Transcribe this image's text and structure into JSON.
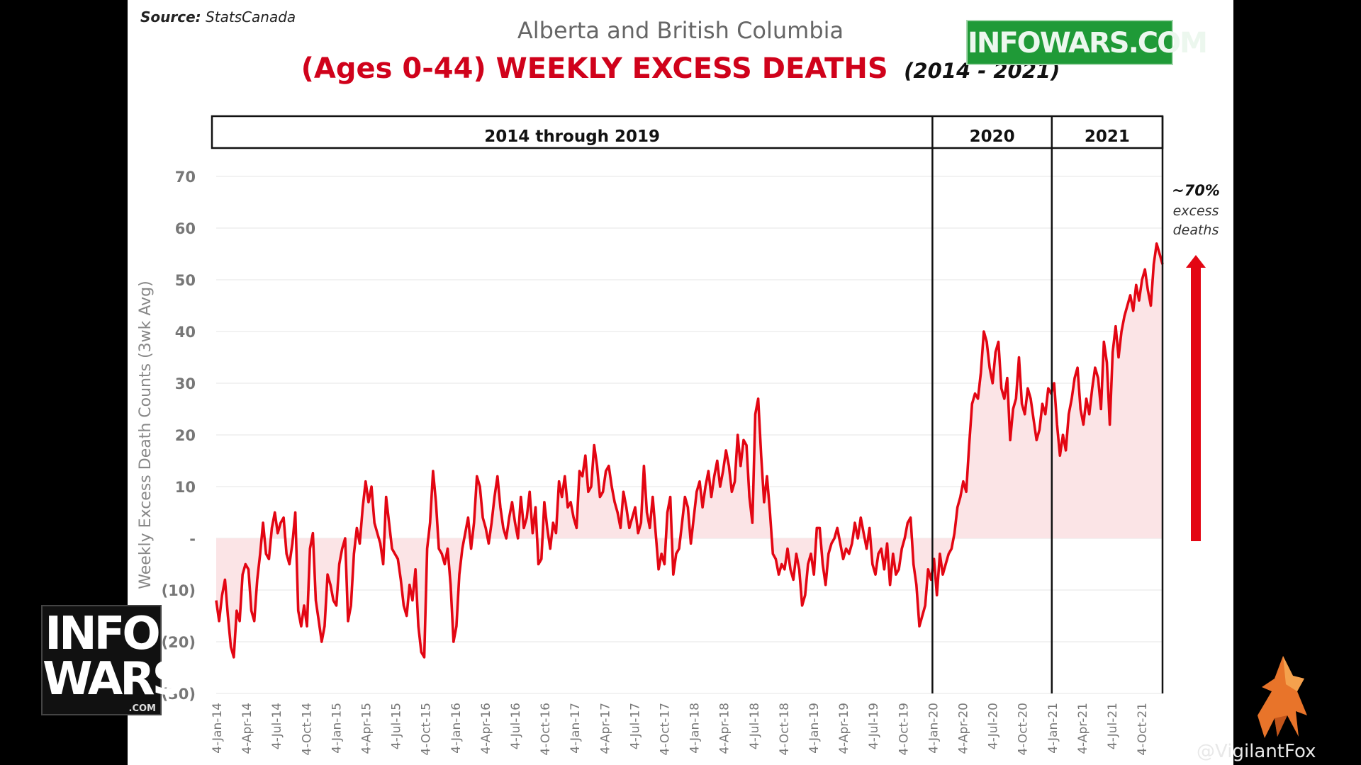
{
  "source": {
    "label": "Source:",
    "value": "StatsCanada"
  },
  "title_top": "Alberta and British Columbia",
  "title_main": "(Ages 0-44) WEEKLY EXCESS DEATHS",
  "title_years": "(2014 - 2021)",
  "logo_corner": "INFOWARS.COM",
  "logo_left": {
    "line1": "INFO",
    "line2": "WARS",
    "com": ".COM"
  },
  "watermark": "@VigilantFox",
  "colors": {
    "line": "#e30613",
    "title": "#d0021b",
    "logo_green": "#1f9a37"
  },
  "icons": {
    "fox": "fox-icon",
    "arrow": "up-arrow-icon"
  },
  "chart_data": {
    "type": "line",
    "ylabel": "Weekly Excess Death Counts (3wk Avg)",
    "xlabel": "",
    "ylim": [
      -30,
      70
    ],
    "y_ticks": [
      70,
      60,
      50,
      40,
      30,
      20,
      10,
      0,
      -10,
      -20,
      -30
    ],
    "y_tick_labels": [
      "70",
      "60",
      "50",
      "40",
      "30",
      "20",
      "10",
      "-",
      "(10)",
      "(20)",
      "(30)"
    ],
    "x_tick_labels": [
      "4-Jan-14",
      "4-Apr-14",
      "4-Jul-14",
      "4-Oct-14",
      "4-Jan-15",
      "4-Apr-15",
      "4-Jul-15",
      "4-Oct-15",
      "4-Jan-16",
      "4-Apr-16",
      "4-Jul-16",
      "4-Oct-16",
      "4-Jan-17",
      "4-Apr-17",
      "4-Jul-17",
      "4-Oct-17",
      "4-Jan-18",
      "4-Apr-18",
      "4-Jul-18",
      "4-Oct-18",
      "4-Jan-19",
      "4-Apr-19",
      "4-Jul-19",
      "4-Oct-19",
      "4-Jan-20",
      "4-Apr-20",
      "4-Jul-20",
      "4-Oct-20",
      "4-Jan-21",
      "4-Apr-21",
      "4-Jul-21",
      "4-Oct-21"
    ],
    "periods": [
      {
        "label": "2014 through 2019",
        "start_index": 0,
        "end_index": 24
      },
      {
        "label": "2020",
        "start_index": 24,
        "end_index": 28
      },
      {
        "label": "2021",
        "start_index": 28,
        "end_index": 32
      }
    ],
    "grid": true,
    "annotation": {
      "pct": "~70%",
      "line2": "excess",
      "line3": "deaths"
    },
    "series": [
      {
        "values": [
          -12,
          -16,
          -11,
          -8,
          -15,
          -21,
          -23,
          -14,
          -16,
          -7,
          -5,
          -6,
          -14,
          -16,
          -8,
          -3,
          3,
          -3,
          -4,
          2,
          5,
          1,
          3,
          4,
          -3,
          -5,
          -1,
          5,
          -14,
          -17,
          -13,
          -17,
          -2,
          1,
          -12,
          -16,
          -20,
          -17,
          -7,
          -9,
          -12,
          -13,
          -5,
          -2,
          0,
          -16,
          -13,
          -3,
          2,
          -1,
          6,
          11,
          7,
          10,
          3,
          1,
          -1,
          -5,
          8,
          3,
          -2,
          -3,
          -4,
          -8,
          -13,
          -15,
          -9,
          -12,
          -6,
          -17,
          -22,
          -23,
          -2,
          3,
          13,
          7,
          -2,
          -3,
          -5,
          -2,
          -9,
          -20,
          -17,
          -7,
          -2,
          1,
          4,
          -2,
          3,
          12,
          10,
          4,
          2,
          -1,
          3,
          8,
          12,
          6,
          2,
          0,
          4,
          7,
          3,
          0,
          8,
          2,
          4,
          9,
          1,
          6,
          -5,
          -4,
          7,
          2,
          -2,
          3,
          1,
          11,
          8,
          12,
          6,
          7,
          4,
          2,
          13,
          12,
          16,
          9,
          10,
          18,
          14,
          8,
          9,
          13,
          14,
          10,
          7,
          5,
          2,
          9,
          6,
          2,
          4,
          6,
          1,
          3,
          14,
          5,
          2,
          8,
          1,
          -6,
          -3,
          -5,
          5,
          8,
          -7,
          -3,
          -2,
          3,
          8,
          6,
          -1,
          4,
          9,
          11,
          6,
          10,
          13,
          8,
          12,
          15,
          10,
          13,
          17,
          14,
          9,
          11,
          20,
          14,
          19,
          18,
          8,
          3,
          24,
          27,
          16,
          7,
          12,
          5,
          -3,
          -4,
          -7,
          -5,
          -6,
          -2,
          -6,
          -8,
          -3,
          -6,
          -13,
          -11,
          -5,
          -3,
          -7,
          2,
          2,
          -5,
          -9,
          -3,
          -1,
          0,
          2,
          -1,
          -4,
          -2,
          -3,
          -1,
          3,
          0,
          4,
          1,
          -2,
          2,
          -5,
          -7,
          -3,
          -2,
          -6,
          -1,
          -9,
          -3,
          -7,
          -6,
          -2,
          0,
          3,
          4,
          -5,
          -9,
          -17,
          -15,
          -13,
          -6,
          -8,
          -4,
          -11,
          -3,
          -7,
          -5,
          -3,
          -2,
          1,
          6,
          8,
          11,
          9,
          18,
          26,
          28,
          27,
          32,
          40,
          38,
          33,
          30,
          36,
          38,
          29,
          27,
          31,
          19,
          25,
          27,
          35,
          26,
          24,
          29,
          27,
          23,
          19,
          21,
          26,
          24,
          29,
          28,
          30,
          22,
          16,
          20,
          17,
          24,
          27,
          31,
          33,
          25,
          22,
          27,
          24,
          29,
          33,
          31,
          25,
          38,
          34,
          22,
          36,
          41,
          35,
          40,
          43,
          45,
          47,
          44,
          49,
          46,
          50,
          52,
          48,
          45,
          53,
          57,
          55,
          53
        ]
      }
    ]
  }
}
